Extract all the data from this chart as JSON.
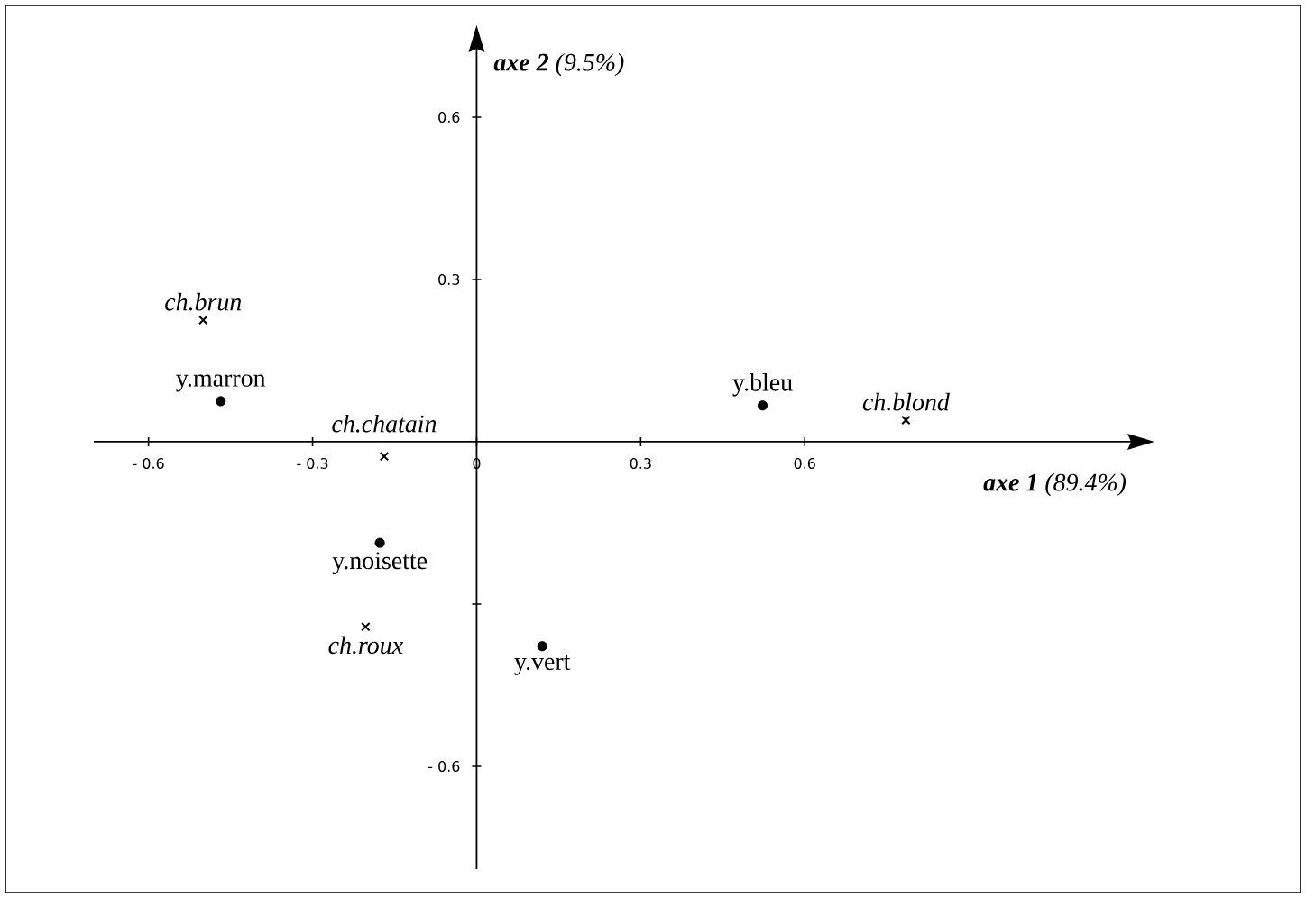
{
  "chart_data": {
    "type": "scatter",
    "xlabel": "**axe 1** (89.4%)",
    "ylabel": "**axe 2** (9.5%)",
    "series": [
      {
        "color": "#000000",
        "marker": "circle",
        "x": [
          -0.468,
          0.523,
          -0.177,
          0.12
        ],
        "values": [
          0.075,
          0.067,
          -0.187,
          -0.378
        ]
      },
      {
        "color": "#000000",
        "marker": "cross",
        "x": [
          -0.5,
          -0.169,
          0.785,
          -0.203
        ],
        "values": [
          0.225,
          -0.027,
          0.04,
          -0.342
        ]
      }
    ],
    "annotations": [
      {
        "text": "y.marron",
        "x": -0.468,
        "y": 0.075
      },
      {
        "text": "y.bleu",
        "x": 0.523,
        "y": 0.067
      },
      {
        "text": "y.noisette",
        "x": -0.177,
        "y": -0.187
      },
      {
        "text": "y.vert",
        "x": 0.12,
        "y": -0.378
      },
      {
        "text": "ch.brun",
        "x": -0.5,
        "y": 0.225
      },
      {
        "text": "ch.chatain",
        "x": -0.169,
        "y": -0.027
      },
      {
        "text": "ch.blond",
        "x": 0.785,
        "y": 0.04
      },
      {
        "text": "ch.roux",
        "x": -0.203,
        "y": -0.342
      }
    ],
    "xlim": [
      -0.7,
      1.2
    ],
    "ylim": [
      -0.79,
      0.73
    ],
    "xticks": [
      {
        "value": -0.6,
        "label": "- 0.6"
      },
      {
        "value": -0.3,
        "label": "- 0.3"
      },
      0,
      0.3,
      0.6
    ],
    "yticks": [
      {
        "value": -0.6,
        "label": "- 0.6"
      },
      {
        "value": -0.3,
        "label": null
      },
      0.3,
      0.6
    ]
  }
}
